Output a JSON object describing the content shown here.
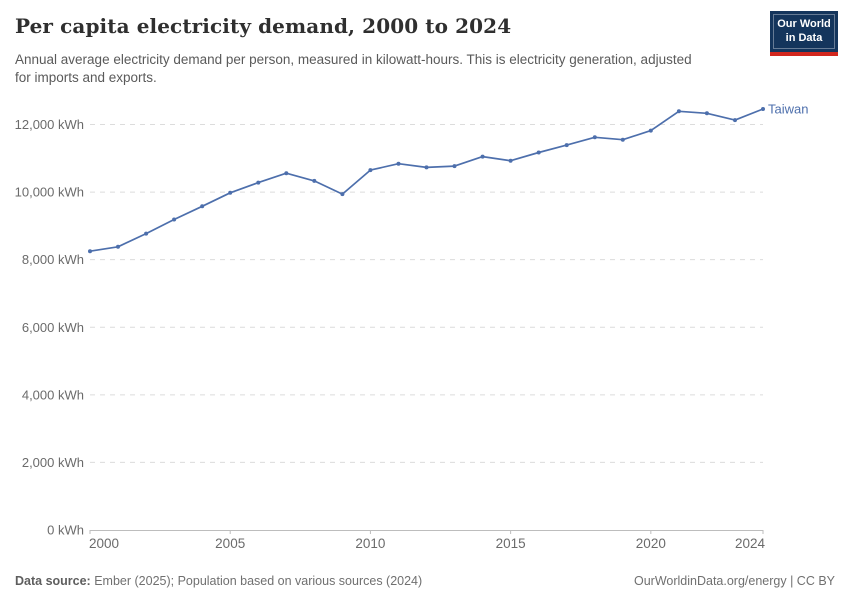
{
  "header": {
    "title": "Per capita electricity demand, 2000 to 2024",
    "subtitle": "Annual average electricity demand per person, measured in kilowatt-hours. This is electricity generation, adjusted for imports and exports.",
    "logo_line1": "Our World",
    "logo_line2": "in Data"
  },
  "chart_data": {
    "type": "line",
    "title": "Per capita electricity demand, 2000 to 2024",
    "unit": "kWh",
    "xlabel": "",
    "ylabel": "kWh",
    "xlim": [
      2000,
      2024
    ],
    "ylim": [
      0,
      12000
    ],
    "xticks": [
      2000,
      2005,
      2010,
      2015,
      2020,
      2024
    ],
    "yticks": [
      0,
      2000,
      4000,
      6000,
      8000,
      10000,
      12000
    ],
    "grid": "horizontal-dashed",
    "legend_position": "end-of-line-label",
    "x": [
      2000,
      2001,
      2002,
      2003,
      2004,
      2005,
      2006,
      2007,
      2008,
      2009,
      2010,
      2011,
      2012,
      2013,
      2014,
      2015,
      2016,
      2017,
      2018,
      2019,
      2020,
      2021,
      2022,
      2023,
      2024
    ],
    "series": [
      {
        "name": "Taiwan",
        "color": "#4D6FAC",
        "values": [
          8250,
          8380,
          8770,
          9190,
          9580,
          9980,
          10280,
          10560,
          10330,
          9940,
          10650,
          10840,
          10730,
          10770,
          11050,
          10930,
          11170,
          11390,
          11620,
          11550,
          11820,
          12390,
          12330,
          12130,
          12460
        ]
      }
    ]
  },
  "footer": {
    "source_label": "Data source:",
    "source_text": " Ember (2025); Population based on various sources (2024)",
    "credit": "OurWorldinData.org/energy | CC BY"
  },
  "colors": {
    "line": "#4D6FAC",
    "gridline": "#dcdcdc",
    "axis": "#bdbdbd",
    "tick_text": "#6b6b6b",
    "logo_navy": "#14355c",
    "logo_red": "#d2271e"
  }
}
